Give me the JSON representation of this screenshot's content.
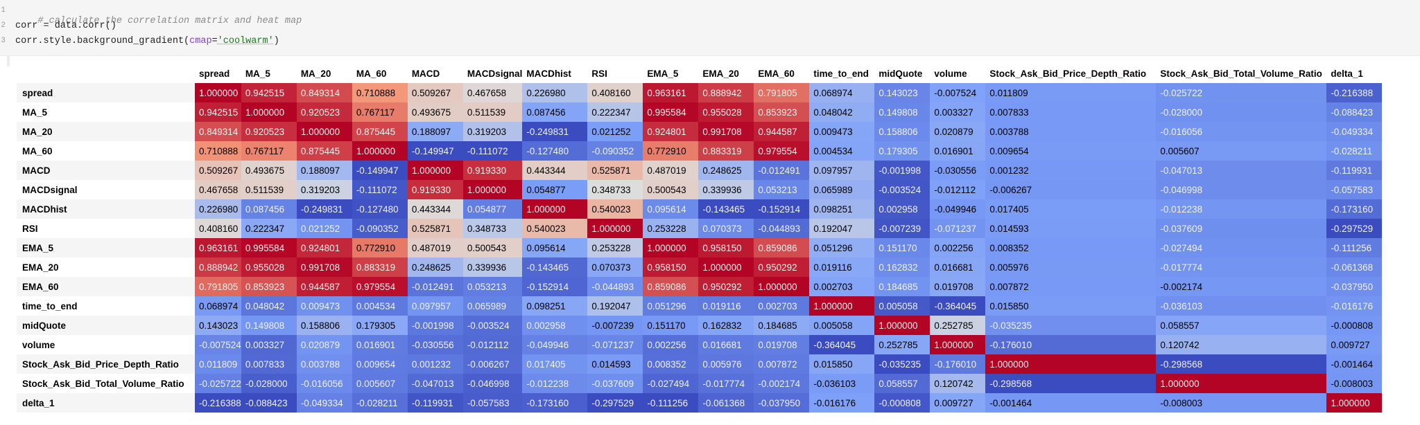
{
  "code": {
    "line_numbers": [
      "1",
      "2",
      "3"
    ],
    "comment": "# calculate the correlation matrix and heat map",
    "line2": "corr = data.corr()",
    "line3_prefix": "corr.style.background_gradient(",
    "line3_kw": "cmap",
    "line3_eq": "=",
    "line3_str": "'coolwarm'",
    "line3_suffix": ")"
  },
  "colors": {
    "cmap": "coolwarm",
    "cmap_low": "#3b4cc0",
    "cmap_mid": "#dddddd",
    "cmap_high": "#b40426"
  },
  "table": {
    "columns": [
      "spread",
      "MA_5",
      "MA_20",
      "MA_60",
      "MACD",
      "MACDsignal",
      "MACDhist",
      "RSI",
      "EMA_5",
      "EMA_20",
      "EMA_60",
      "time_to_end",
      "midQuote",
      "volume",
      "Stock_Ask_Bid_Price_Depth_Ratio",
      "Stock_Ask_Bid_Total_Volume_Ratio",
      "delta_1"
    ],
    "rows": [
      {
        "label": "spread",
        "values": [
          "1.000000",
          "0.942515",
          "0.849314",
          "0.710888",
          "0.509267",
          "0.467658",
          "0.226980",
          "0.408160",
          "0.963161",
          "0.888942",
          "0.791805",
          "0.068974",
          "0.143023",
          "-0.007524",
          "0.011809",
          "-0.025722",
          "-0.216388"
        ]
      },
      {
        "label": "MA_5",
        "values": [
          "0.942515",
          "1.000000",
          "0.920523",
          "0.767117",
          "0.493675",
          "0.511539",
          "0.087456",
          "0.222347",
          "0.995584",
          "0.955028",
          "0.853923",
          "0.048042",
          "0.149808",
          "0.003327",
          "0.007833",
          "-0.028000",
          "-0.088423"
        ]
      },
      {
        "label": "MA_20",
        "values": [
          "0.849314",
          "0.920523",
          "1.000000",
          "0.875445",
          "0.188097",
          "0.319203",
          "-0.249831",
          "0.021252",
          "0.924801",
          "0.991708",
          "0.944587",
          "0.009473",
          "0.158806",
          "0.020879",
          "0.003788",
          "-0.016056",
          "-0.049334"
        ]
      },
      {
        "label": "MA_60",
        "values": [
          "0.710888",
          "0.767117",
          "0.875445",
          "1.000000",
          "-0.149947",
          "-0.111072",
          "-0.127480",
          "-0.090352",
          "0.772910",
          "0.883319",
          "0.979554",
          "0.004534",
          "0.179305",
          "0.016901",
          "0.009654",
          "0.005607",
          "-0.028211"
        ]
      },
      {
        "label": "MACD",
        "values": [
          "0.509267",
          "0.493675",
          "0.188097",
          "-0.149947",
          "1.000000",
          "0.919330",
          "0.443344",
          "0.525871",
          "0.487019",
          "0.248625",
          "-0.012491",
          "0.097957",
          "-0.001998",
          "-0.030556",
          "0.001232",
          "-0.047013",
          "-0.119931"
        ]
      },
      {
        "label": "MACDsignal",
        "values": [
          "0.467658",
          "0.511539",
          "0.319203",
          "-0.111072",
          "0.919330",
          "1.000000",
          "0.054877",
          "0.348733",
          "0.500543",
          "0.339936",
          "0.053213",
          "0.065989",
          "-0.003524",
          "-0.012112",
          "-0.006267",
          "-0.046998",
          "-0.057583"
        ]
      },
      {
        "label": "MACDhist",
        "values": [
          "0.226980",
          "0.087456",
          "-0.249831",
          "-0.127480",
          "0.443344",
          "0.054877",
          "1.000000",
          "0.540023",
          "0.095614",
          "-0.143465",
          "-0.152914",
          "0.098251",
          "0.002958",
          "-0.049946",
          "0.017405",
          "-0.012238",
          "-0.173160"
        ]
      },
      {
        "label": "RSI",
        "values": [
          "0.408160",
          "0.222347",
          "0.021252",
          "-0.090352",
          "0.525871",
          "0.348733",
          "0.540023",
          "1.000000",
          "0.253228",
          "0.070373",
          "-0.044893",
          "0.192047",
          "-0.007239",
          "-0.071237",
          "0.014593",
          "-0.037609",
          "-0.297529"
        ]
      },
      {
        "label": "EMA_5",
        "values": [
          "0.963161",
          "0.995584",
          "0.924801",
          "0.772910",
          "0.487019",
          "0.500543",
          "0.095614",
          "0.253228",
          "1.000000",
          "0.958150",
          "0.859086",
          "0.051296",
          "0.151170",
          "0.002256",
          "0.008352",
          "-0.027494",
          "-0.111256"
        ]
      },
      {
        "label": "EMA_20",
        "values": [
          "0.888942",
          "0.955028",
          "0.991708",
          "0.883319",
          "0.248625",
          "0.339936",
          "-0.143465",
          "0.070373",
          "0.958150",
          "1.000000",
          "0.950292",
          "0.019116",
          "0.162832",
          "0.016681",
          "0.005976",
          "-0.017774",
          "-0.061368"
        ]
      },
      {
        "label": "EMA_60",
        "values": [
          "0.791805",
          "0.853923",
          "0.944587",
          "0.979554",
          "-0.012491",
          "0.053213",
          "-0.152914",
          "-0.044893",
          "0.859086",
          "0.950292",
          "1.000000",
          "0.002703",
          "0.184685",
          "0.019708",
          "0.007872",
          "-0.002174",
          "-0.037950"
        ]
      },
      {
        "label": "time_to_end",
        "values": [
          "0.068974",
          "0.048042",
          "0.009473",
          "0.004534",
          "0.097957",
          "0.065989",
          "0.098251",
          "0.192047",
          "0.051296",
          "0.019116",
          "0.002703",
          "1.000000",
          "0.005058",
          "-0.364045",
          "0.015850",
          "-0.036103",
          "-0.016176"
        ]
      },
      {
        "label": "midQuote",
        "values": [
          "0.143023",
          "0.149808",
          "0.158806",
          "0.179305",
          "-0.001998",
          "-0.003524",
          "0.002958",
          "-0.007239",
          "0.151170",
          "0.162832",
          "0.184685",
          "0.005058",
          "1.000000",
          "0.252785",
          "-0.035235",
          "0.058557",
          "-0.000808"
        ]
      },
      {
        "label": "volume",
        "values": [
          "-0.007524",
          "0.003327",
          "0.020879",
          "0.016901",
          "-0.030556",
          "-0.012112",
          "-0.049946",
          "-0.071237",
          "0.002256",
          "0.016681",
          "0.019708",
          "-0.364045",
          "0.252785",
          "1.000000",
          "-0.176010",
          "0.120742",
          "0.009727"
        ]
      },
      {
        "label": "Stock_Ask_Bid_Price_Depth_Ratio",
        "values": [
          "0.011809",
          "0.007833",
          "0.003788",
          "0.009654",
          "0.001232",
          "-0.006267",
          "0.017405",
          "0.014593",
          "0.008352",
          "0.005976",
          "0.007872",
          "0.015850",
          "-0.035235",
          "-0.176010",
          "1.000000",
          "-0.298568",
          "-0.001464"
        ]
      },
      {
        "label": "Stock_Ask_Bid_Total_Volume_Ratio",
        "values": [
          "-0.025722",
          "-0.028000",
          "-0.016056",
          "0.005607",
          "-0.047013",
          "-0.046998",
          "-0.012238",
          "-0.037609",
          "-0.027494",
          "-0.017774",
          "-0.002174",
          "-0.036103",
          "0.058557",
          "0.120742",
          "-0.298568",
          "1.000000",
          "-0.008003"
        ]
      },
      {
        "label": "delta_1",
        "values": [
          "-0.216388",
          "-0.088423",
          "-0.049334",
          "-0.028211",
          "-0.119931",
          "-0.057583",
          "-0.173160",
          "-0.297529",
          "-0.111256",
          "-0.061368",
          "-0.037950",
          "-0.016176",
          "-0.000808",
          "0.009727",
          "-0.001464",
          "-0.008003",
          "1.000000"
        ]
      }
    ]
  }
}
